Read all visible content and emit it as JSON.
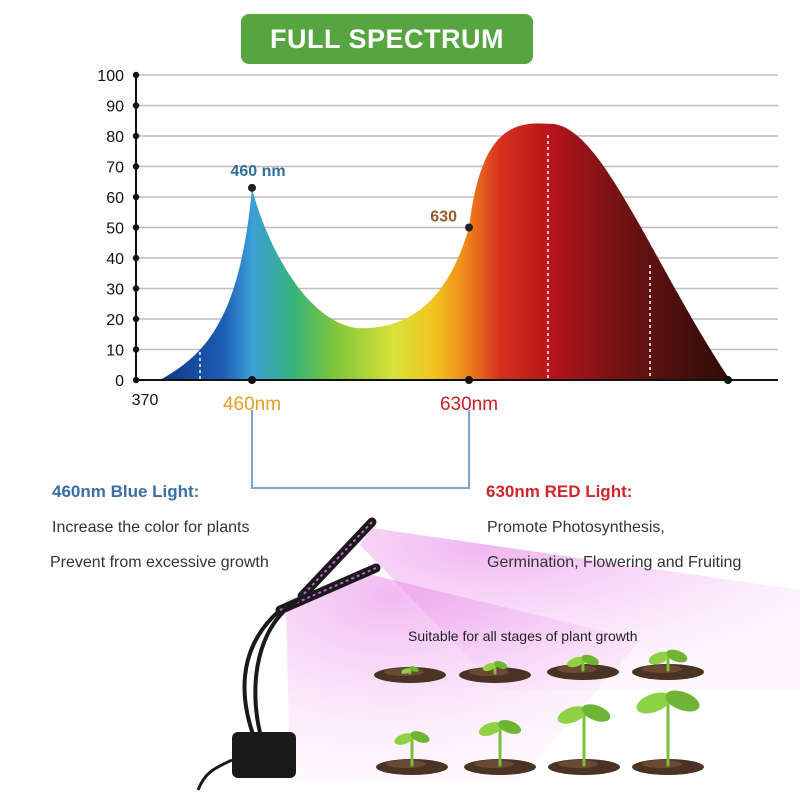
{
  "header": {
    "title": "FULL SPECTRUM",
    "bg_color": "#56a540"
  },
  "chart_data": {
    "type": "area",
    "title": "FULL SPECTRUM",
    "xlabel": "",
    "ylabel": "",
    "ylim": [
      0,
      100
    ],
    "y_ticks": [
      0,
      10,
      20,
      30,
      40,
      50,
      60,
      70,
      80,
      90,
      100
    ],
    "x_tick_labels": [
      "370",
      "460nm",
      "630nm"
    ],
    "grid": true,
    "series": [
      {
        "x": [
          370,
          460,
          540,
          630,
          690,
          760
        ],
        "y": [
          0,
          63,
          17,
          50,
          84,
          0
        ]
      }
    ],
    "annotations": [
      {
        "label": "460 nm",
        "x": 460,
        "y": 63
      },
      {
        "label": "630",
        "x": 630,
        "y": 50
      }
    ]
  },
  "info": {
    "blue": {
      "heading": "460nm Blue Light:",
      "lines": [
        "Increase the color for plants",
        "Prevent from excessive growth"
      ],
      "color": "#3a6ea5"
    },
    "red": {
      "heading": "630nm RED Light:",
      "lines": [
        "Promote Photosynthesis,",
        "Germination, Flowering and Fruiting"
      ],
      "color": "#d0262c"
    }
  },
  "product": {
    "caption": "Suitable for all stages of plant growth"
  }
}
